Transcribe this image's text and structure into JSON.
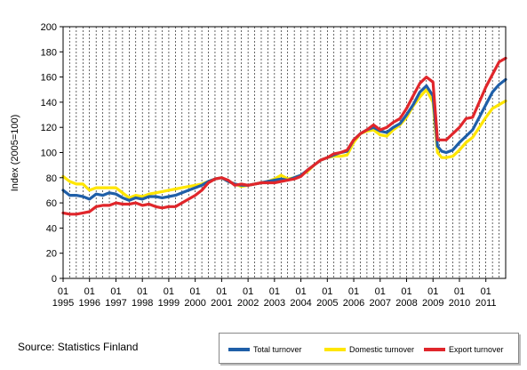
{
  "chart_data": {
    "type": "line",
    "title": "",
    "xlabel": "",
    "ylabel": "Index (2005=100)",
    "ylim": [
      0,
      200
    ],
    "yticks": [
      0,
      20,
      40,
      60,
      80,
      100,
      120,
      140,
      160,
      180,
      200
    ],
    "xlim": [
      1995,
      2011.75
    ],
    "x_ticks": [
      {
        "month": "01",
        "year": "1995"
      },
      {
        "month": "01",
        "year": "1996"
      },
      {
        "month": "01",
        "year": "1997"
      },
      {
        "month": "01",
        "year": "1998"
      },
      {
        "month": "01",
        "year": "1999"
      },
      {
        "month": "01",
        "year": "2000"
      },
      {
        "month": "01",
        "year": "2001"
      },
      {
        "month": "01",
        "year": "2002"
      },
      {
        "month": "01",
        "year": "2003"
      },
      {
        "month": "01",
        "year": "2004"
      },
      {
        "month": "01",
        "year": "2005"
      },
      {
        "month": "01",
        "year": "2006"
      },
      {
        "month": "01",
        "year": "2007"
      },
      {
        "month": "01",
        "year": "2008"
      },
      {
        "month": "01",
        "year": "2009"
      },
      {
        "month": "01",
        "year": "2010"
      },
      {
        "month": "01",
        "year": "2011"
      }
    ],
    "grid": "vertical dashed",
    "legend_position": "bottom-right",
    "series": [
      {
        "name": "Total turnover",
        "color": "#1f5fa8",
        "points": [
          [
            1995.0,
            70
          ],
          [
            1995.25,
            66
          ],
          [
            1995.5,
            66
          ],
          [
            1995.75,
            65
          ],
          [
            1996.0,
            63
          ],
          [
            1996.25,
            67
          ],
          [
            1996.5,
            66
          ],
          [
            1996.75,
            68
          ],
          [
            1997.0,
            67
          ],
          [
            1997.25,
            64
          ],
          [
            1997.5,
            62
          ],
          [
            1997.75,
            64
          ],
          [
            1998.0,
            63
          ],
          [
            1998.25,
            65
          ],
          [
            1998.5,
            65
          ],
          [
            1998.75,
            64
          ],
          [
            1999.0,
            65
          ],
          [
            1999.25,
            66
          ],
          [
            1999.5,
            68
          ],
          [
            1999.75,
            70
          ],
          [
            2000.0,
            72
          ],
          [
            2000.25,
            74
          ],
          [
            2000.5,
            77
          ],
          [
            2000.75,
            79
          ],
          [
            2001.0,
            80
          ],
          [
            2001.25,
            77
          ],
          [
            2001.5,
            75
          ],
          [
            2001.75,
            74
          ],
          [
            2002.0,
            74
          ],
          [
            2002.25,
            75
          ],
          [
            2002.5,
            76
          ],
          [
            2002.75,
            77
          ],
          [
            2003.0,
            78
          ],
          [
            2003.25,
            79
          ],
          [
            2003.5,
            78
          ],
          [
            2003.75,
            80
          ],
          [
            2004.0,
            82
          ],
          [
            2004.25,
            86
          ],
          [
            2004.5,
            90
          ],
          [
            2004.75,
            94
          ],
          [
            2005.0,
            96
          ],
          [
            2005.25,
            98
          ],
          [
            2005.5,
            100
          ],
          [
            2005.75,
            101
          ],
          [
            2006.0,
            110
          ],
          [
            2006.25,
            115
          ],
          [
            2006.5,
            118
          ],
          [
            2006.75,
            120
          ],
          [
            2007.0,
            117
          ],
          [
            2007.25,
            116
          ],
          [
            2007.5,
            120
          ],
          [
            2007.75,
            123
          ],
          [
            2008.0,
            130
          ],
          [
            2008.25,
            138
          ],
          [
            2008.5,
            148
          ],
          [
            2008.75,
            153
          ],
          [
            2009.0,
            145
          ],
          [
            2009.17,
            105
          ],
          [
            2009.33,
            101
          ],
          [
            2009.5,
            100
          ],
          [
            2009.75,
            102
          ],
          [
            2010.0,
            108
          ],
          [
            2010.25,
            113
          ],
          [
            2010.5,
            118
          ],
          [
            2010.75,
            128
          ],
          [
            2011.0,
            138
          ],
          [
            2011.25,
            148
          ],
          [
            2011.5,
            154
          ],
          [
            2011.75,
            158
          ]
        ]
      },
      {
        "name": "Domestic turnover",
        "color": "#ffe600",
        "points": [
          [
            1995.0,
            81
          ],
          [
            1995.25,
            77
          ],
          [
            1995.5,
            75
          ],
          [
            1995.75,
            75
          ],
          [
            1996.0,
            70
          ],
          [
            1996.25,
            72
          ],
          [
            1996.5,
            72
          ],
          [
            1996.75,
            72
          ],
          [
            1997.0,
            72
          ],
          [
            1997.25,
            68
          ],
          [
            1997.5,
            64
          ],
          [
            1997.75,
            66
          ],
          [
            1998.0,
            65
          ],
          [
            1998.25,
            67
          ],
          [
            1998.5,
            68
          ],
          [
            1998.75,
            69
          ],
          [
            1999.0,
            70
          ],
          [
            1999.25,
            71
          ],
          [
            1999.5,
            72
          ],
          [
            1999.75,
            73
          ],
          [
            2000.0,
            74
          ],
          [
            2000.25,
            75
          ],
          [
            2000.5,
            77
          ],
          [
            2000.75,
            79
          ],
          [
            2001.0,
            80
          ],
          [
            2001.25,
            77
          ],
          [
            2001.5,
            75
          ],
          [
            2001.75,
            73
          ],
          [
            2002.0,
            74
          ],
          [
            2002.25,
            75
          ],
          [
            2002.5,
            76
          ],
          [
            2002.75,
            77
          ],
          [
            2003.0,
            79
          ],
          [
            2003.25,
            82
          ],
          [
            2003.5,
            79
          ],
          [
            2003.75,
            80
          ],
          [
            2004.0,
            82
          ],
          [
            2004.25,
            85
          ],
          [
            2004.5,
            90
          ],
          [
            2004.75,
            94
          ],
          [
            2005.0,
            96
          ],
          [
            2005.25,
            97
          ],
          [
            2005.5,
            97
          ],
          [
            2005.75,
            98
          ],
          [
            2006.0,
            108
          ],
          [
            2006.25,
            115
          ],
          [
            2006.5,
            117
          ],
          [
            2006.75,
            118
          ],
          [
            2007.0,
            114
          ],
          [
            2007.25,
            113
          ],
          [
            2007.5,
            118
          ],
          [
            2007.75,
            122
          ],
          [
            2008.0,
            128
          ],
          [
            2008.25,
            137
          ],
          [
            2008.5,
            144
          ],
          [
            2008.75,
            150
          ],
          [
            2009.0,
            140
          ],
          [
            2009.17,
            100
          ],
          [
            2009.33,
            96
          ],
          [
            2009.5,
            96
          ],
          [
            2009.75,
            97
          ],
          [
            2010.0,
            102
          ],
          [
            2010.25,
            108
          ],
          [
            2010.5,
            112
          ],
          [
            2010.75,
            120
          ],
          [
            2011.0,
            128
          ],
          [
            2011.25,
            135
          ],
          [
            2011.5,
            138
          ],
          [
            2011.75,
            141
          ]
        ]
      },
      {
        "name": "Export turnover",
        "color": "#e0262b",
        "points": [
          [
            1995.0,
            52
          ],
          [
            1995.25,
            51
          ],
          [
            1995.5,
            51
          ],
          [
            1995.75,
            52
          ],
          [
            1996.0,
            53
          ],
          [
            1996.25,
            57
          ],
          [
            1996.5,
            58
          ],
          [
            1996.75,
            58
          ],
          [
            1997.0,
            60
          ],
          [
            1997.25,
            59
          ],
          [
            1997.5,
            59
          ],
          [
            1997.75,
            60
          ],
          [
            1998.0,
            58
          ],
          [
            1998.25,
            59
          ],
          [
            1998.5,
            57
          ],
          [
            1998.75,
            56
          ],
          [
            1999.0,
            57
          ],
          [
            1999.25,
            57
          ],
          [
            1999.5,
            60
          ],
          [
            1999.75,
            63
          ],
          [
            2000.0,
            66
          ],
          [
            2000.25,
            70
          ],
          [
            2000.5,
            76
          ],
          [
            2000.75,
            79
          ],
          [
            2001.0,
            80
          ],
          [
            2001.25,
            78
          ],
          [
            2001.5,
            74
          ],
          [
            2001.75,
            75
          ],
          [
            2002.0,
            74
          ],
          [
            2002.25,
            75
          ],
          [
            2002.5,
            76
          ],
          [
            2002.75,
            76
          ],
          [
            2003.0,
            76
          ],
          [
            2003.25,
            77
          ],
          [
            2003.5,
            78
          ],
          [
            2003.75,
            79
          ],
          [
            2004.0,
            81
          ],
          [
            2004.25,
            86
          ],
          [
            2004.5,
            90
          ],
          [
            2004.75,
            94
          ],
          [
            2005.0,
            96
          ],
          [
            2005.25,
            99
          ],
          [
            2005.5,
            100
          ],
          [
            2005.75,
            102
          ],
          [
            2006.0,
            110
          ],
          [
            2006.25,
            115
          ],
          [
            2006.5,
            118
          ],
          [
            2006.75,
            122
          ],
          [
            2007.0,
            118
          ],
          [
            2007.25,
            120
          ],
          [
            2007.5,
            124
          ],
          [
            2007.75,
            127
          ],
          [
            2008.0,
            135
          ],
          [
            2008.25,
            145
          ],
          [
            2008.5,
            155
          ],
          [
            2008.75,
            160
          ],
          [
            2009.0,
            156
          ],
          [
            2009.17,
            110
          ],
          [
            2009.33,
            110
          ],
          [
            2009.5,
            110
          ],
          [
            2009.75,
            115
          ],
          [
            2010.0,
            120
          ],
          [
            2010.25,
            127
          ],
          [
            2010.5,
            128
          ],
          [
            2010.75,
            140
          ],
          [
            2011.0,
            152
          ],
          [
            2011.25,
            162
          ],
          [
            2011.5,
            172
          ],
          [
            2011.75,
            175
          ]
        ]
      }
    ]
  },
  "source": "Source: Statistics Finland",
  "legend": {
    "items": [
      {
        "label": "Total turnover",
        "color": "#1f5fa8"
      },
      {
        "label": "Domestic turnover",
        "color": "#ffe600"
      },
      {
        "label": "Export turnover",
        "color": "#e0262b"
      }
    ]
  }
}
